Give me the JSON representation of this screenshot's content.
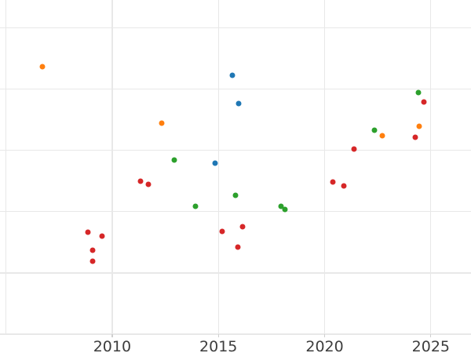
{
  "chart_data": {
    "type": "scatter",
    "title": "",
    "xlabel": "",
    "ylabel": "",
    "grid": true,
    "legend": "none",
    "y_axis_labels_visible": false,
    "x_range": [
      2004.72,
      2026.89
    ],
    "y_range": [
      0,
      5.455
    ],
    "x_gridlines_years": [
      2005,
      2010,
      2015,
      2020,
      2025
    ],
    "y_gridlines_values": [
      0,
      1,
      2,
      3,
      4,
      5
    ],
    "x_ticks": [
      {
        "year": 2010,
        "label": "2010"
      },
      {
        "year": 2015,
        "label": "2015"
      },
      {
        "year": 2020,
        "label": "2020"
      },
      {
        "year": 2025,
        "label": "2025"
      }
    ],
    "series": [
      {
        "name": "blue",
        "color": "#1f77b4",
        "points": [
          [
            2015.65,
            4.23
          ],
          [
            2015.97,
            3.76
          ],
          [
            2014.85,
            2.79
          ]
        ]
      },
      {
        "name": "orange",
        "color": "#ff7f0e",
        "points": [
          [
            2006.72,
            4.37
          ],
          [
            2012.32,
            3.44
          ],
          [
            2022.7,
            3.24
          ],
          [
            2024.46,
            3.39
          ]
        ]
      },
      {
        "name": "green",
        "color": "#2ca02c",
        "points": [
          [
            2012.91,
            2.84
          ],
          [
            2013.92,
            2.09
          ],
          [
            2015.81,
            2.27
          ],
          [
            2017.94,
            2.09
          ],
          [
            2018.15,
            2.04
          ],
          [
            2022.34,
            3.33
          ],
          [
            2024.43,
            3.94
          ]
        ]
      },
      {
        "name": "red",
        "color": "#d62728",
        "points": [
          [
            2011.33,
            2.5
          ],
          [
            2011.72,
            2.44
          ],
          [
            2008.84,
            1.67
          ],
          [
            2009.52,
            1.6
          ],
          [
            2009.09,
            1.37
          ],
          [
            2009.09,
            1.19
          ],
          [
            2015.16,
            1.68
          ],
          [
            2016.14,
            1.75
          ],
          [
            2015.9,
            1.42
          ],
          [
            2020.4,
            2.49
          ],
          [
            2020.89,
            2.42
          ],
          [
            2021.39,
            3.02
          ],
          [
            2024.28,
            3.21
          ],
          [
            2024.67,
            3.79
          ]
        ]
      }
    ]
  },
  "style": {
    "background": "#ffffff",
    "grid_color": "#e8e8e8",
    "tick_color": "#cfcfcf",
    "tick_label_color": "#3d3d3d",
    "series_colors": {
      "blue": "#1f77b4",
      "orange": "#ff7f0e",
      "green": "#2ca02c",
      "red": "#d62728"
    }
  }
}
